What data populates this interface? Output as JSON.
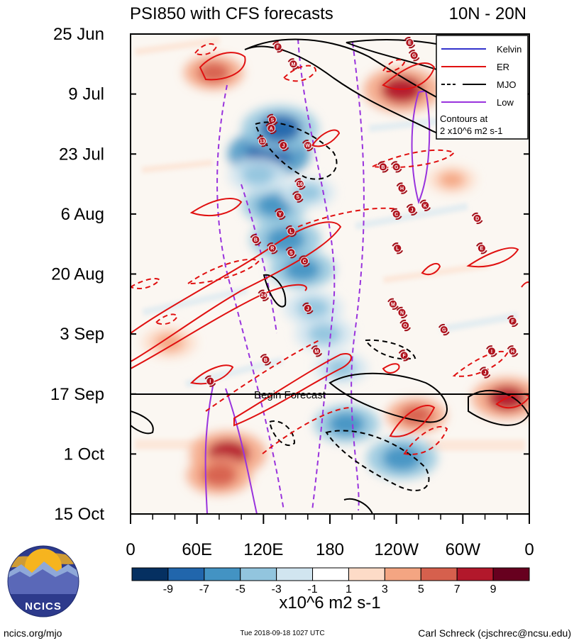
{
  "title_left": "PSI850 with CFS forecasts",
  "title_right": "10N - 20N",
  "chart_data": {
    "type": "heatmap",
    "title": "PSI850 with CFS forecasts",
    "subtitle": "10N - 20N",
    "x_ticks": [
      "0",
      "60E",
      "120E",
      "180",
      "120W",
      "60W",
      "0"
    ],
    "x_range": [
      0,
      360
    ],
    "y_ticks": [
      "25 Jun",
      "9 Jul",
      "23 Jul",
      "6 Aug",
      "20 Aug",
      "3 Sep",
      "17 Sep",
      "1 Oct",
      "15 Oct"
    ],
    "y_range_days": [
      0,
      112
    ],
    "forecast_start_label": "Begin Forecast",
    "forecast_start_day": 84,
    "colorbar_ticks": [
      "-9",
      "-7",
      "-5",
      "-3",
      "-1",
      "1",
      "3",
      "5",
      "7",
      "9"
    ],
    "colorbar_colors": [
      "#053061",
      "#2166ac",
      "#4393c3",
      "#92c5de",
      "#d1e5f0",
      "#ffffff",
      "#fddbc7",
      "#f4a582",
      "#d6604d",
      "#b2182b",
      "#67001f"
    ],
    "units": "x10^6 m2 s-1",
    "blobs": [
      {
        "lon": 125,
        "day": 28,
        "value": -9
      },
      {
        "lon": 135,
        "day": 22,
        "value": -8
      },
      {
        "lon": 130,
        "day": 40,
        "value": -6
      },
      {
        "lon": 140,
        "day": 48,
        "value": -7
      },
      {
        "lon": 155,
        "day": 55,
        "value": -6
      },
      {
        "lon": 165,
        "day": 64,
        "value": -5
      },
      {
        "lon": 175,
        "day": 70,
        "value": -5
      },
      {
        "lon": 190,
        "day": 78,
        "value": -4
      },
      {
        "lon": 195,
        "day": 91,
        "value": -6
      },
      {
        "lon": 245,
        "day": 99,
        "value": -7
      },
      {
        "lon": 115,
        "day": 33,
        "value": -5
      },
      {
        "lon": 160,
        "day": 37,
        "value": -4
      },
      {
        "lon": 88,
        "day": 98,
        "value": 8
      },
      {
        "lon": 80,
        "day": 103,
        "value": 6
      },
      {
        "lon": 245,
        "day": 13,
        "value": 8
      },
      {
        "lon": 75,
        "day": 9,
        "value": 5
      },
      {
        "lon": 258,
        "day": 89,
        "value": 5
      },
      {
        "lon": 340,
        "day": 85,
        "value": 7
      },
      {
        "lon": 35,
        "day": 72,
        "value": 4
      },
      {
        "lon": 290,
        "day": 34,
        "value": 3
      }
    ],
    "contours": [
      {
        "name": "Kelvin",
        "color": "#3333cc",
        "style": "solid"
      },
      {
        "name": "ER",
        "color": "#e01010",
        "style": "solid/dashed"
      },
      {
        "name": "MJO",
        "color": "#000000",
        "style": "solid/dashed"
      },
      {
        "name": "Low",
        "color": "#9933dd",
        "style": "solid/dashed"
      }
    ],
    "contour_note": "Contours at 2 x10^6 m2 s-1",
    "storms": [
      {
        "id": "F",
        "lon": 133,
        "day": 3
      },
      {
        "id": "E",
        "lon": 252,
        "day": 2
      },
      {
        "id": "G",
        "lon": 256,
        "day": 5
      },
      {
        "id": "M",
        "lon": 147,
        "day": 7
      },
      {
        "id": "S",
        "lon": 128,
        "day": 20
      },
      {
        "id": "A",
        "lon": 127,
        "day": 22
      },
      {
        "id": "13",
        "lon": 119,
        "day": 25
      },
      {
        "id": "J",
        "lon": 138,
        "day": 26
      },
      {
        "id": "W",
        "lon": 160,
        "day": 26
      },
      {
        "id": "B",
        "lon": 228,
        "day": 31
      },
      {
        "id": "G",
        "lon": 240,
        "day": 31
      },
      {
        "id": "16",
        "lon": 153,
        "day": 35
      },
      {
        "id": "H",
        "lon": 245,
        "day": 36
      },
      {
        "id": "S",
        "lon": 151,
        "day": 38
      },
      {
        "id": "Y",
        "lon": 135,
        "day": 42
      },
      {
        "id": "C",
        "lon": 240,
        "day": 42
      },
      {
        "id": "J",
        "lon": 254,
        "day": 41
      },
      {
        "id": "K",
        "lon": 266,
        "day": 40
      },
      {
        "id": "D",
        "lon": 313,
        "day": 43
      },
      {
        "id": "L",
        "lon": 145,
        "day": 46
      },
      {
        "id": "B",
        "lon": 113,
        "day": 48
      },
      {
        "id": "R",
        "lon": 128,
        "day": 50
      },
      {
        "id": "S",
        "lon": 145,
        "day": 51
      },
      {
        "id": "L",
        "lon": 241,
        "day": 50
      },
      {
        "id": "E",
        "lon": 317,
        "day": 50
      },
      {
        "id": "C",
        "lon": 157,
        "day": 53
      },
      {
        "id": "24",
        "lon": 120,
        "day": 61
      },
      {
        "id": "J",
        "lon": 160,
        "day": 64
      },
      {
        "id": "M",
        "lon": 237,
        "day": 63
      },
      {
        "id": "N",
        "lon": 245,
        "day": 65
      },
      {
        "id": "O",
        "lon": 248,
        "day": 68
      },
      {
        "id": "G",
        "lon": 283,
        "day": 69
      },
      {
        "id": "F",
        "lon": 345,
        "day": 67
      },
      {
        "id": "M",
        "lon": 168,
        "day": 74
      },
      {
        "id": "F",
        "lon": 247,
        "day": 75
      },
      {
        "id": "I",
        "lon": 326,
        "day": 74
      },
      {
        "id": "H",
        "lon": 345,
        "day": 74
      },
      {
        "id": "B",
        "lon": 122,
        "day": 76
      },
      {
        "id": "J",
        "lon": 320,
        "day": 79
      },
      {
        "id": "I",
        "lon": 72,
        "day": 81
      }
    ]
  },
  "legend": {
    "items": [
      {
        "label": "Kelvin",
        "color": "#3333cc"
      },
      {
        "label": "ER",
        "color": "#e01010"
      },
      {
        "label": "MJO",
        "color": "#000000"
      },
      {
        "label": "Low",
        "color": "#9933dd"
      }
    ],
    "note_line1": "Contours at",
    "note_line2": "2 x10^6 m2 s-1"
  },
  "logo_text": "NCICS",
  "footer": {
    "left": "ncics.org/mjo",
    "center": "Tue 2018-09-18 1027 UTC",
    "right": "Carl Schreck (cjschrec@ncsu.edu)"
  }
}
